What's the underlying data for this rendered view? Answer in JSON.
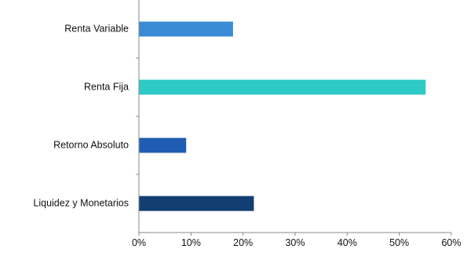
{
  "chart_data": {
    "type": "bar",
    "orientation": "horizontal",
    "categories": [
      "Renta Variable",
      "Renta Fija",
      "Retorno Absoluto",
      "Liquidez y Monetarios"
    ],
    "values": [
      18,
      55,
      9,
      22
    ],
    "colors": [
      "#3a8bd6",
      "#2ecac8",
      "#1f5db3",
      "#123e72"
    ],
    "xlim": [
      0,
      60
    ],
    "x_ticks": [
      0,
      10,
      20,
      30,
      40,
      50,
      60
    ],
    "x_tick_labels": [
      "0%",
      "10%",
      "20%",
      "30%",
      "40%",
      "50%",
      "60%"
    ],
    "grid": false,
    "title": "",
    "xlabel": "",
    "ylabel": "",
    "axis_color": "#888888"
  }
}
